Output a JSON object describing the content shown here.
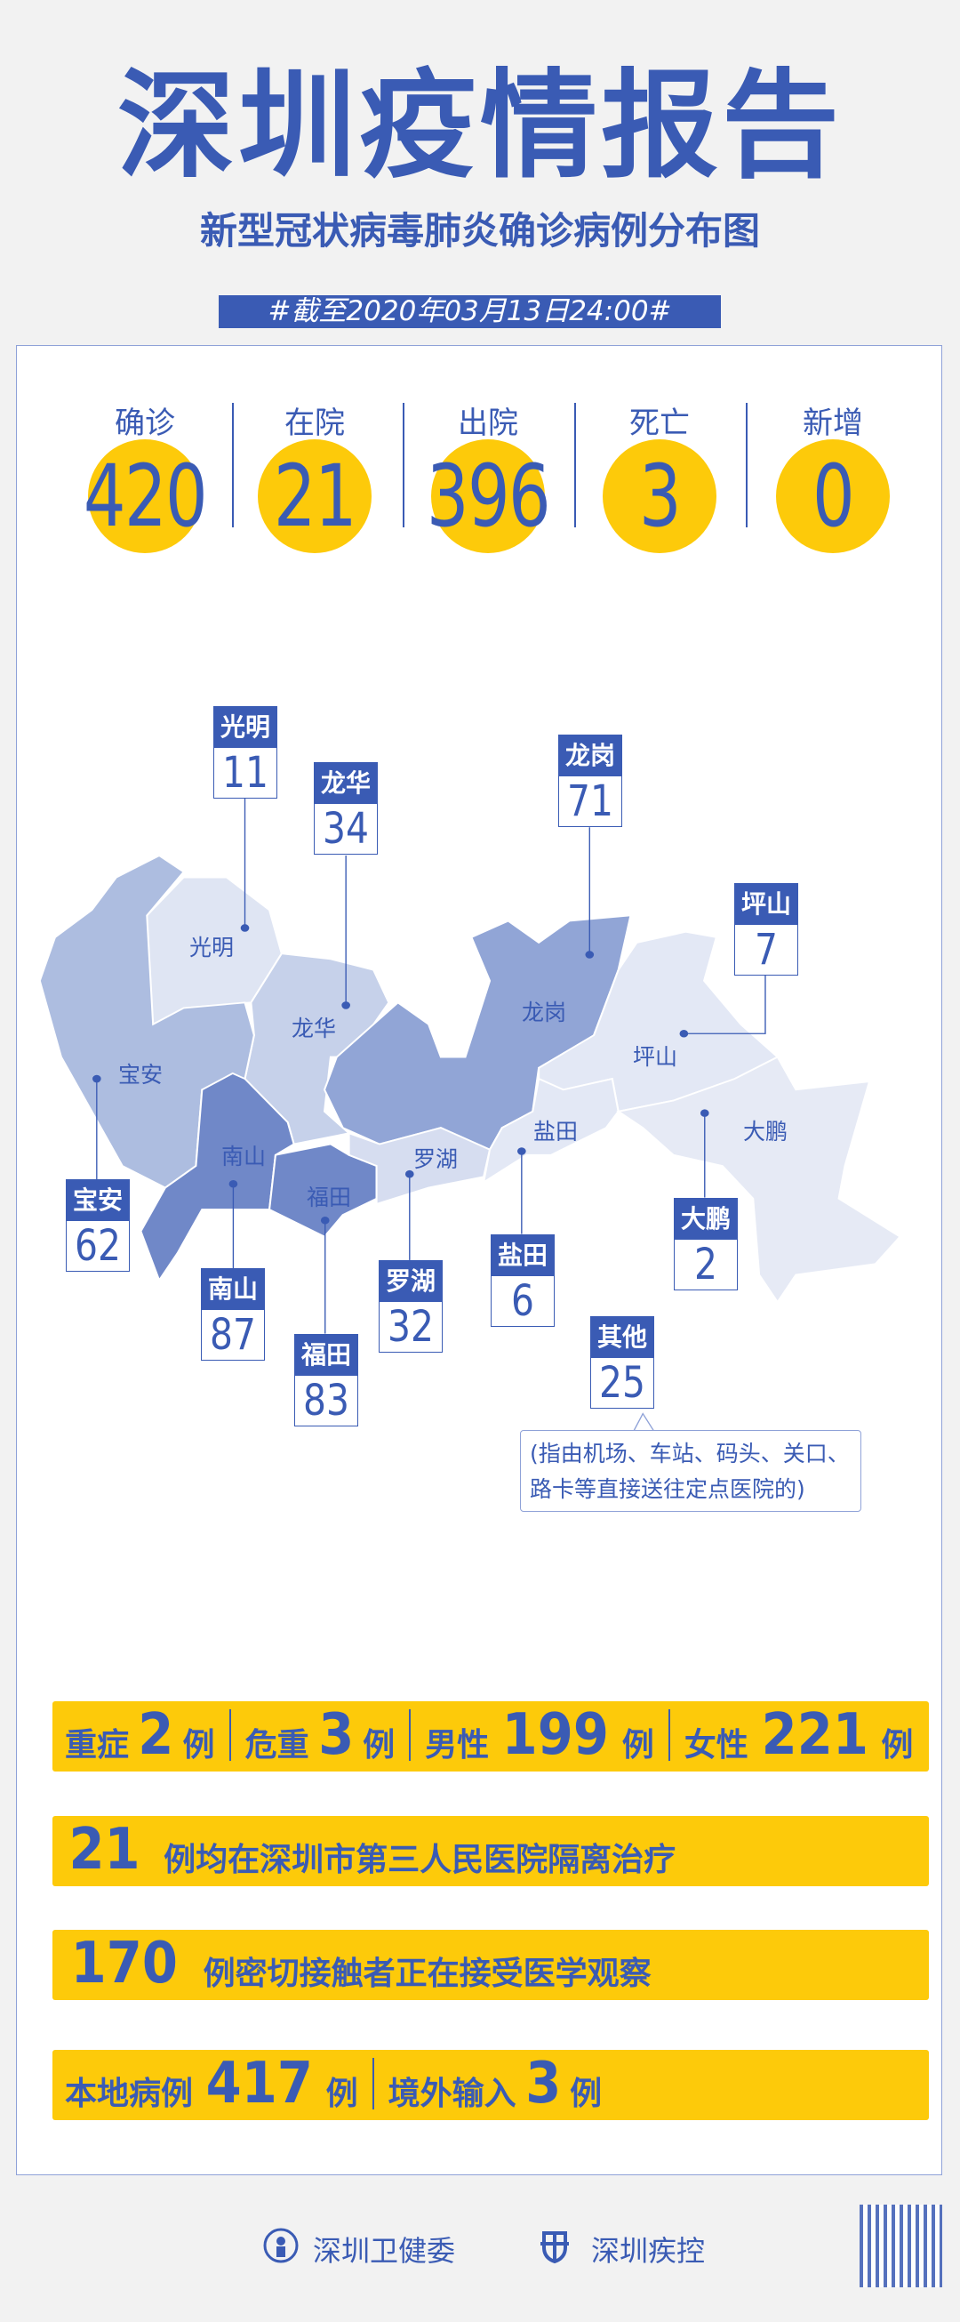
{
  "header": {
    "title": "深圳疫情报告",
    "subtitle": "新型冠状病毒肺炎确诊病例分布图",
    "date": "#截至2020年03月13日24:00#"
  },
  "stats": [
    {
      "label": "确诊",
      "value": "420"
    },
    {
      "label": "在院",
      "value": "21"
    },
    {
      "label": "出院",
      "value": "396"
    },
    {
      "label": "死亡",
      "value": "3"
    },
    {
      "label": "新增",
      "value": "0"
    }
  ],
  "map": {
    "districts": [
      {
        "name": "光明",
        "count": "11",
        "color": "#dfe5f3"
      },
      {
        "name": "龙华",
        "count": "34",
        "color": "#c6d1ea"
      },
      {
        "name": "龙岗",
        "count": "71",
        "color": "#91a5d6"
      },
      {
        "name": "坪山",
        "count": "7",
        "color": "#e3e8f5"
      },
      {
        "name": "宝安",
        "count": "62",
        "color": "#adbde0"
      },
      {
        "name": "南山",
        "count": "87",
        "color": "#7088c8"
      },
      {
        "name": "福田",
        "count": "83",
        "color": "#7088c8"
      },
      {
        "name": "罗湖",
        "count": "32",
        "color": "#d6ddf0"
      },
      {
        "name": "盐田",
        "count": "6",
        "color": "#e3e8f5"
      },
      {
        "name": "大鹏",
        "count": "2",
        "color": "#e6eaf5"
      }
    ],
    "other": {
      "name": "其他",
      "count": "25",
      "note_line1": "(指由机场、车站、码头、关口、",
      "note_line2": "路卡等直接送往定点医院的)"
    }
  },
  "bars": {
    "b1": {
      "l1": "重症",
      "v1": "2",
      "u1": "例",
      "l2": "危重",
      "v2": "3",
      "u2": "例",
      "l3": "男性",
      "v3": "199",
      "u3": "例",
      "l4": "女性",
      "v4": "221",
      "u4": "例"
    },
    "b2": {
      "v": "21",
      "text": "例均在深圳市第三人民医院隔离治疗"
    },
    "b3": {
      "v": "170",
      "text": "例密切接触者正在接受医学观察"
    },
    "b4": {
      "l1": "本地病例",
      "v1": "417",
      "u1": "例",
      "l2": "境外输入",
      "v2": "3",
      "u2": "例"
    }
  },
  "footer": {
    "org1": "深圳卫健委",
    "org2": "深圳疾控",
    "qr_icon": "qr-code"
  },
  "colors": {
    "blue": "#3a5bb4",
    "yellow": "#fdca0a",
    "background": "#f2f2f2"
  }
}
